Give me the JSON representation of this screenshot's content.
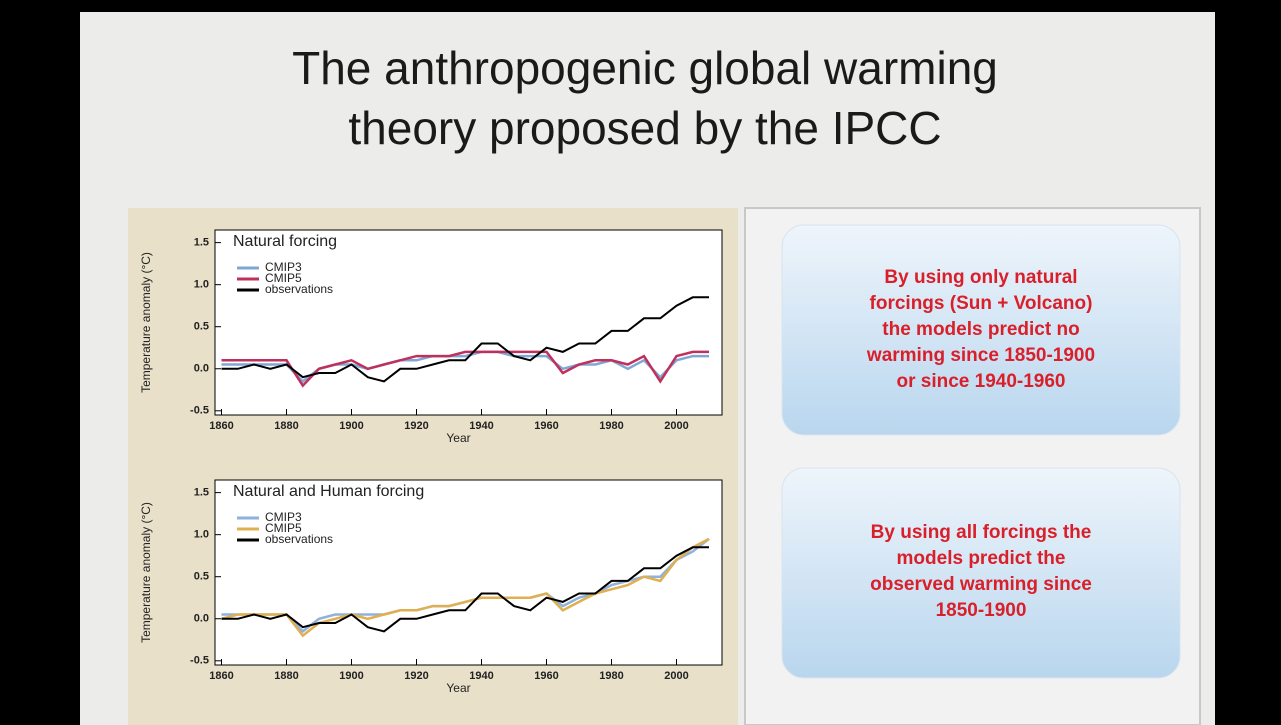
{
  "title": [
    "The anthropogenic global warming",
    "theory proposed by the IPCC"
  ],
  "notes": [
    [
      "By using only natural",
      "forcings (Sun + Volcano)",
      "the models predict no",
      "warming since 1850-1900",
      "or since 1940-1960"
    ],
    [
      "By using all forcings the",
      "models predict the",
      "observed warming since",
      "1850-1900"
    ]
  ],
  "chart_data": [
    {
      "type": "line",
      "title": "Natural forcing",
      "x_label": "Year",
      "y_label": "Temperature anomaly (°C)",
      "x": [
        1860,
        1865,
        1870,
        1875,
        1880,
        1885,
        1890,
        1895,
        1900,
        1905,
        1910,
        1915,
        1920,
        1925,
        1930,
        1935,
        1940,
        1945,
        1950,
        1955,
        1960,
        1965,
        1970,
        1975,
        1980,
        1985,
        1990,
        1995,
        2000,
        2005,
        2010
      ],
      "series": [
        {
          "name": "CMIP3",
          "color": "#7fa7d6",
          "values": [
            0.05,
            0.05,
            0.05,
            0.05,
            0.05,
            -0.15,
            0.0,
            0.05,
            0.05,
            0.0,
            0.05,
            0.1,
            0.1,
            0.15,
            0.15,
            0.15,
            0.2,
            0.2,
            0.15,
            0.15,
            0.15,
            0.0,
            0.05,
            0.05,
            0.1,
            0.0,
            0.1,
            -0.1,
            0.1,
            0.15,
            0.15
          ]
        },
        {
          "name": "CMIP5",
          "color": "#c0305a",
          "values": [
            0.1,
            0.1,
            0.1,
            0.1,
            0.1,
            -0.2,
            0.0,
            0.05,
            0.1,
            0.0,
            0.05,
            0.1,
            0.15,
            0.15,
            0.15,
            0.2,
            0.2,
            0.2,
            0.2,
            0.2,
            0.2,
            -0.05,
            0.05,
            0.1,
            0.1,
            0.05,
            0.15,
            -0.15,
            0.15,
            0.2,
            0.2
          ]
        },
        {
          "name": "observations",
          "color": "#000000",
          "values": [
            0.0,
            0.0,
            0.05,
            0.0,
            0.05,
            -0.1,
            -0.05,
            -0.05,
            0.05,
            -0.1,
            -0.15,
            0.0,
            0.0,
            0.05,
            0.1,
            0.1,
            0.3,
            0.3,
            0.15,
            0.1,
            0.25,
            0.2,
            0.3,
            0.3,
            0.45,
            0.45,
            0.6,
            0.6,
            0.75,
            0.85,
            0.85
          ]
        }
      ],
      "xlim": [
        1858,
        2014
      ],
      "xticks": [
        1860,
        1880,
        1900,
        1920,
        1940,
        1960,
        1980,
        2000
      ],
      "ylim": [
        -0.55,
        1.65
      ],
      "yticks": [
        -0.5,
        {
          "value": 0,
          "label": "0.0"
        },
        0.5,
        {
          "value": 1,
          "label": "1.0"
        },
        1.5
      ]
    },
    {
      "type": "line",
      "title": "Natural and Human forcing",
      "x_label": "Year",
      "y_label": "Temperature anomaly (°C)",
      "x": [
        1860,
        1865,
        1870,
        1875,
        1880,
        1885,
        1890,
        1895,
        1900,
        1905,
        1910,
        1915,
        1920,
        1925,
        1930,
        1935,
        1940,
        1945,
        1950,
        1955,
        1960,
        1965,
        1970,
        1975,
        1980,
        1985,
        1990,
        1995,
        2000,
        2005,
        2010
      ],
      "series": [
        {
          "name": "CMIP3",
          "color": "#8fb2dc",
          "values": [
            0.05,
            0.05,
            0.05,
            0.05,
            0.05,
            -0.15,
            0.0,
            0.05,
            0.05,
            0.05,
            0.05,
            0.1,
            0.1,
            0.15,
            0.15,
            0.2,
            0.25,
            0.25,
            0.25,
            0.25,
            0.3,
            0.15,
            0.25,
            0.3,
            0.4,
            0.45,
            0.5,
            0.5,
            0.7,
            0.8,
            0.95
          ]
        },
        {
          "name": "CMIP5",
          "color": "#e0b050",
          "values": [
            0.0,
            0.05,
            0.05,
            0.05,
            0.05,
            -0.2,
            -0.05,
            0.0,
            0.05,
            0.0,
            0.05,
            0.1,
            0.1,
            0.15,
            0.15,
            0.2,
            0.25,
            0.25,
            0.25,
            0.25,
            0.3,
            0.1,
            0.2,
            0.3,
            0.35,
            0.4,
            0.5,
            0.45,
            0.7,
            0.85,
            0.95
          ]
        },
        {
          "name": "observations",
          "color": "#000000",
          "values": [
            0.0,
            0.0,
            0.05,
            0.0,
            0.05,
            -0.1,
            -0.05,
            -0.05,
            0.05,
            -0.1,
            -0.15,
            0.0,
            0.0,
            0.05,
            0.1,
            0.1,
            0.3,
            0.3,
            0.15,
            0.1,
            0.25,
            0.2,
            0.3,
            0.3,
            0.45,
            0.45,
            0.6,
            0.6,
            0.75,
            0.85,
            0.85
          ]
        }
      ],
      "xlim": [
        1858,
        2014
      ],
      "xticks": [
        1860,
        1880,
        1900,
        1920,
        1940,
        1960,
        1980,
        2000
      ],
      "ylim": [
        -0.55,
        1.65
      ],
      "yticks": [
        -0.5,
        {
          "value": 0,
          "label": "0.0"
        },
        0.5,
        {
          "value": 1,
          "label": "1.0"
        },
        1.5
      ]
    }
  ]
}
